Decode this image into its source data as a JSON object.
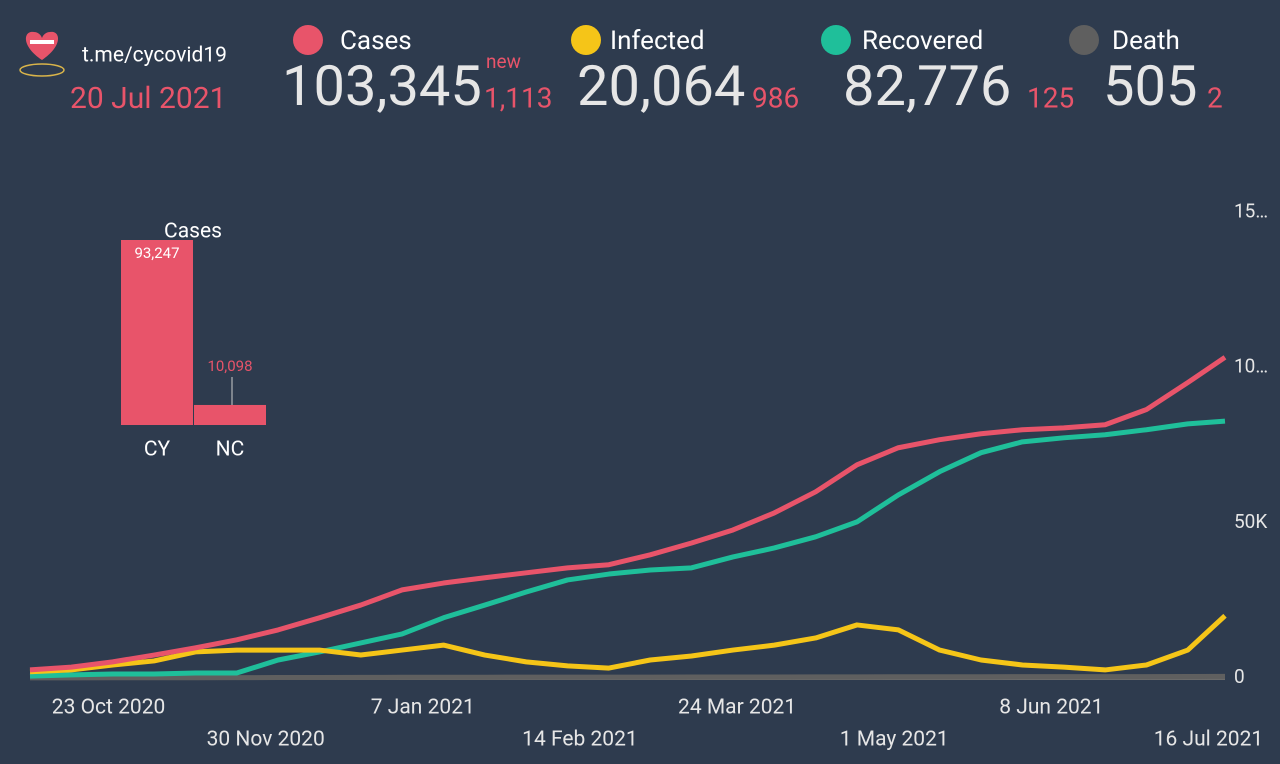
{
  "header": {
    "link": "t.me/cycovid19",
    "date": "20 Jul 2021",
    "new_label": "new",
    "stats": [
      {
        "total": "103,345",
        "new": "1,113"
      },
      {
        "total": "20,064",
        "new": "986"
      },
      {
        "total": "82,776",
        "new": "125"
      },
      {
        "total": "505",
        "new": "2"
      }
    ]
  },
  "chart_data": [
    {
      "type": "line",
      "x": [
        "2020-10-04",
        "2020-10-14",
        "2020-10-24",
        "2020-11-03",
        "2020-11-13",
        "2020-11-23",
        "2020-12-03",
        "2020-12-13",
        "2020-12-23",
        "2021-01-02",
        "2021-01-12",
        "2021-01-22",
        "2021-02-01",
        "2021-02-11",
        "2021-02-21",
        "2021-03-03",
        "2021-03-13",
        "2021-03-23",
        "2021-04-02",
        "2021-04-12",
        "2021-04-22",
        "2021-05-02",
        "2021-05-12",
        "2021-05-22",
        "2021-06-01",
        "2021-06-11",
        "2021-06-21",
        "2021-07-01",
        "2021-07-11",
        "2021-07-20"
      ],
      "series": [
        {
          "name": "Cases",
          "color": "#e8546a",
          "values": [
            2600,
            3500,
            5200,
            7400,
            9700,
            12300,
            15500,
            19400,
            23500,
            28400,
            30600,
            32300,
            33900,
            35500,
            36500,
            39700,
            43500,
            47700,
            53200,
            60000,
            68700,
            74200,
            76800,
            78700,
            80000,
            80600,
            81600,
            86500,
            95200,
            103345
          ]
        },
        {
          "name": "Infected",
          "color": "#f5c518",
          "values": [
            2000,
            2600,
            4200,
            5500,
            8400,
            9000,
            9000,
            9000,
            7400,
            9000,
            10600,
            7400,
            5200,
            3900,
            3200,
            5800,
            7100,
            9000,
            10600,
            12900,
            17100,
            15500,
            9000,
            5800,
            4200,
            3500,
            2600,
            4200,
            9000,
            20064
          ]
        },
        {
          "name": "Recovered",
          "color": "#1fbf9a",
          "values": [
            600,
            1000,
            1300,
            1300,
            1600,
            1600,
            5800,
            8400,
            11300,
            14200,
            19400,
            23500,
            27700,
            31600,
            33500,
            34800,
            35500,
            39000,
            41900,
            45500,
            50300,
            59000,
            66500,
            72600,
            76100,
            77400,
            78400,
            80000,
            81900,
            82776
          ]
        },
        {
          "name": "Death",
          "color": "#5f5f5f",
          "values": [
            50,
            60,
            70,
            80,
            100,
            120,
            150,
            180,
            210,
            230,
            250,
            260,
            270,
            280,
            290,
            300,
            310,
            320,
            330,
            350,
            370,
            390,
            410,
            420,
            430,
            440,
            450,
            460,
            480,
            505
          ]
        }
      ],
      "xlim": [
        "2020-10-04",
        "2021-07-20"
      ],
      "xticks": [
        {
          "value": "2020-10-23",
          "label": "23 Oct 2020"
        },
        {
          "value": "2020-11-30",
          "label": "30 Nov 2020"
        },
        {
          "value": "2021-01-07",
          "label": "7 Jan 2021"
        },
        {
          "value": "2021-02-14",
          "label": "14 Feb 2021"
        },
        {
          "value": "2021-03-24",
          "label": "24 Mar 2021"
        },
        {
          "value": "2021-05-01",
          "label": "1 May 2021"
        },
        {
          "value": "2021-06-08",
          "label": "8 Jun 2021"
        },
        {
          "value": "2021-07-16",
          "label": "16 Jul 2021"
        }
      ],
      "ylim": [
        0,
        155000
      ],
      "yticks": [
        0,
        {
          "value": 50000,
          "label": "50K"
        },
        {
          "value": 100000,
          "label": "10…"
        },
        {
          "value": 150000,
          "label": "15…"
        }
      ],
      "grid": false
    },
    {
      "type": "bar",
      "title": "Cases",
      "categories": [
        "CY",
        "NC"
      ],
      "values": [
        93247,
        10098
      ],
      "value_labels": [
        "93,247",
        "10,098"
      ],
      "color": "#e8546a"
    }
  ]
}
